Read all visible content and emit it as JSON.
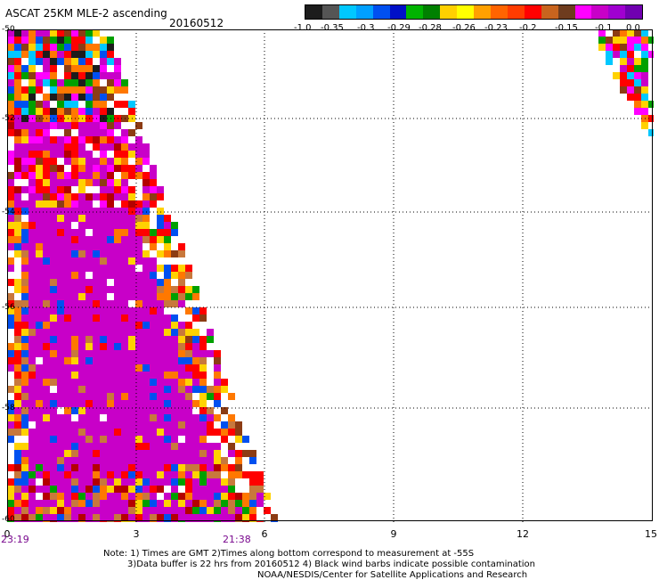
{
  "header": {
    "title": "ASCAT 25KM MLE-2 ascending",
    "date": "20160512"
  },
  "colorbar": {
    "labels": [
      "-1.0",
      "-0.35",
      "-0.3",
      "-0.29",
      "-0.28",
      "-0.26",
      "-0.23",
      "-0.2",
      "-0.15",
      "-0.1",
      "0.0"
    ],
    "colors": [
      "#1c1c1c",
      "#555555",
      "#00c8ff",
      "#00a0ff",
      "#0050f0",
      "#0010c8",
      "#00b400",
      "#008000",
      "#ffd000",
      "#ffff00",
      "#ffa000",
      "#ff6400",
      "#ff3c00",
      "#ff0000",
      "#c8641e",
      "#6e3c1e",
      "#ff00ff",
      "#c800c8",
      "#a000d0",
      "#7000b0"
    ]
  },
  "map": {
    "y_ticks": [
      "-50",
      "-52",
      "-54",
      "-56",
      "-58",
      "-60"
    ],
    "x_ticks": [
      "0",
      "3",
      "6",
      "9",
      "12",
      "15"
    ],
    "time_labels": [
      "23:19",
      "21:38"
    ],
    "palette": {
      "magenta": "#c800c8",
      "red": "#ff0000",
      "orange": "#ff7800",
      "yellow": "#ffd200",
      "brown": "#8c3c14",
      "black": "#1c1c1c",
      "white": "#ffffff",
      "green": "#00a000",
      "cyan": "#00c8ff",
      "blue": "#0050f0",
      "darkblue": "#0010c8",
      "tan": "#c8783c",
      "pink": "#ff00ff",
      "darkred": "#b40000"
    }
  },
  "notes": {
    "line1": "Note: 1) Times are GMT 2)Times along bottom correspond to measurement at -55S",
    "line2": "3)Data buffer is 22 hrs from 20160512 4) Black wind barbs indicate possible contamination",
    "line3": "NOAA/NESDIS/Center for Satellite Applications and Research"
  }
}
